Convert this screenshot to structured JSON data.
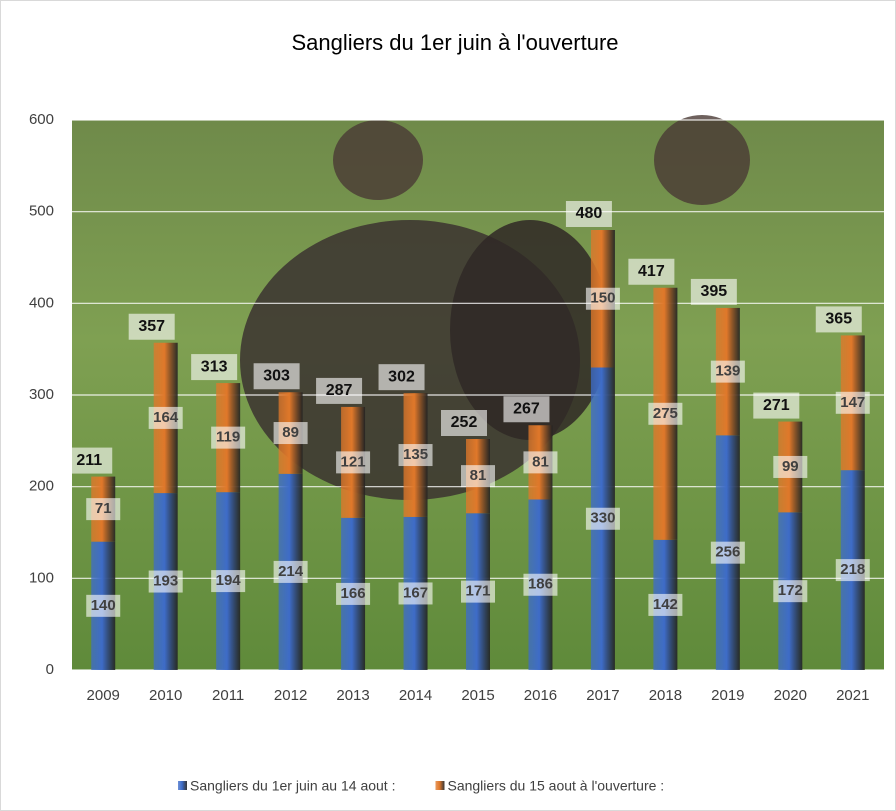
{
  "chart_data": {
    "type": "stacked_bar",
    "title": "Sangliers du 1er juin à l'ouverture",
    "categories": [
      "2009",
      "2010",
      "2011",
      "2012",
      "2013",
      "2014",
      "2015",
      "2016",
      "2017",
      "2018",
      "2019",
      "2020",
      "2021"
    ],
    "series": [
      {
        "name": "Sangliers du 1er juin au 14 aout :",
        "color": "#3e6cc8",
        "values": [
          140,
          193,
          194,
          214,
          166,
          167,
          171,
          186,
          330,
          142,
          256,
          172,
          218
        ]
      },
      {
        "name": "Sangliers du 15 aout à l'ouverture :",
        "color": "#e0782a",
        "values": [
          71,
          164,
          119,
          89,
          121,
          135,
          81,
          81,
          150,
          275,
          139,
          99,
          147
        ]
      }
    ],
    "totals": [
      211,
      357,
      313,
      303,
      287,
      302,
      252,
      267,
      480,
      417,
      395,
      271,
      365
    ],
    "ylim": [
      0,
      600
    ],
    "yticks": [
      0,
      100,
      200,
      300,
      400,
      500,
      600
    ],
    "grid": true,
    "legend": "bottom"
  }
}
